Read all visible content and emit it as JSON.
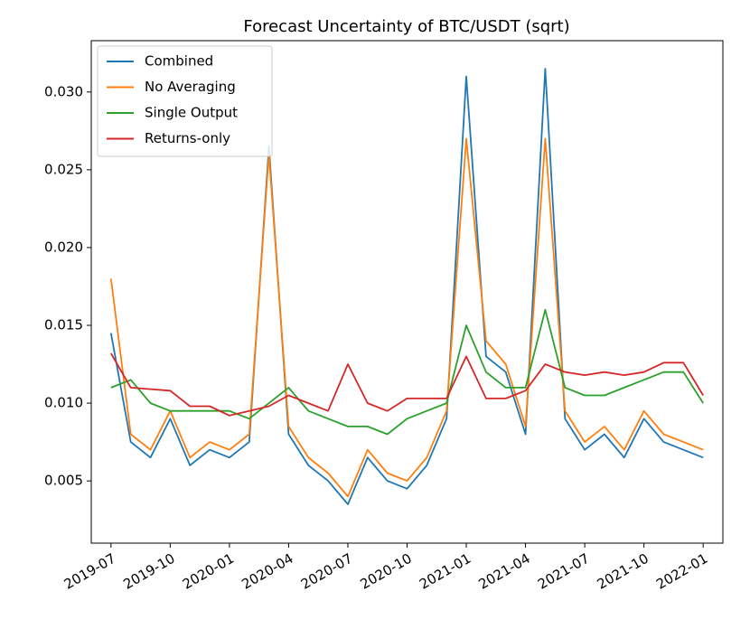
{
  "chart_data": {
    "type": "line",
    "title": "Forecast Uncertainty of BTC/USDT (sqrt)",
    "x": [
      "2019-07",
      "2019-08",
      "2019-09",
      "2019-10",
      "2019-11",
      "2019-12",
      "2020-01",
      "2020-02",
      "2020-03",
      "2020-04",
      "2020-05",
      "2020-06",
      "2020-07",
      "2020-08",
      "2020-09",
      "2020-10",
      "2020-11",
      "2020-12",
      "2021-01",
      "2021-02",
      "2021-03",
      "2021-04",
      "2021-05",
      "2021-06",
      "2021-07",
      "2021-08",
      "2021-09",
      "2021-10",
      "2021-11",
      "2021-12",
      "2022-01"
    ],
    "series": [
      {
        "name": "Combined",
        "color": "#1f77b4",
        "values": [
          0.0145,
          0.0075,
          0.0065,
          0.009,
          0.006,
          0.007,
          0.0065,
          0.0075,
          0.0265,
          0.008,
          0.006,
          0.005,
          0.0035,
          0.0065,
          0.005,
          0.0045,
          0.006,
          0.009,
          0.031,
          0.013,
          0.012,
          0.008,
          0.0315,
          0.009,
          0.007,
          0.008,
          0.0065,
          0.009,
          0.0075,
          0.007,
          0.0065
        ]
      },
      {
        "name": "No Averaging",
        "color": "#ff7f0e",
        "values": [
          0.018,
          0.008,
          0.007,
          0.0095,
          0.0065,
          0.0075,
          0.007,
          0.008,
          0.026,
          0.0085,
          0.0065,
          0.0055,
          0.004,
          0.007,
          0.0055,
          0.005,
          0.0065,
          0.0095,
          0.027,
          0.014,
          0.0125,
          0.0085,
          0.027,
          0.0095,
          0.0075,
          0.0085,
          0.007,
          0.0095,
          0.008,
          0.0075,
          0.007
        ]
      },
      {
        "name": "Single Output",
        "color": "#2ca02c",
        "values": [
          0.011,
          0.0115,
          0.01,
          0.0095,
          0.0095,
          0.0095,
          0.0095,
          0.009,
          0.01,
          0.011,
          0.0095,
          0.009,
          0.0085,
          0.0085,
          0.008,
          0.009,
          0.0095,
          0.01,
          0.015,
          0.012,
          0.011,
          0.011,
          0.016,
          0.011,
          0.0105,
          0.0105,
          0.011,
          0.0115,
          0.012,
          0.012,
          0.01
        ]
      },
      {
        "name": "Returns-only",
        "color": "#d62728",
        "values": [
          0.0132,
          0.011,
          0.0109,
          0.0108,
          0.0098,
          0.0098,
          0.0092,
          0.0095,
          0.0098,
          0.0105,
          0.01,
          0.0095,
          0.0125,
          0.01,
          0.0095,
          0.0103,
          0.0103,
          0.0103,
          0.013,
          0.0103,
          0.0103,
          0.0108,
          0.0125,
          0.012,
          0.0118,
          0.012,
          0.0118,
          0.012,
          0.0126,
          0.0126,
          0.0105
        ]
      }
    ],
    "xlim": [
      "2019-06",
      "2022-02"
    ],
    "xticks": [
      "2019-07",
      "2019-10",
      "2020-01",
      "2020-04",
      "2020-07",
      "2020-10",
      "2021-01",
      "2021-04",
      "2021-07",
      "2021-10",
      "2022-01"
    ],
    "ylim": [
      0.001,
      0.0333
    ],
    "yticks": [
      0.005,
      {
        "value": 0.01,
        "label": "0.010"
      },
      0.015,
      {
        "value": 0.02,
        "label": "0.020"
      },
      0.025,
      {
        "value": 0.03,
        "label": "0.030"
      }
    ],
    "legend": "upper left"
  }
}
